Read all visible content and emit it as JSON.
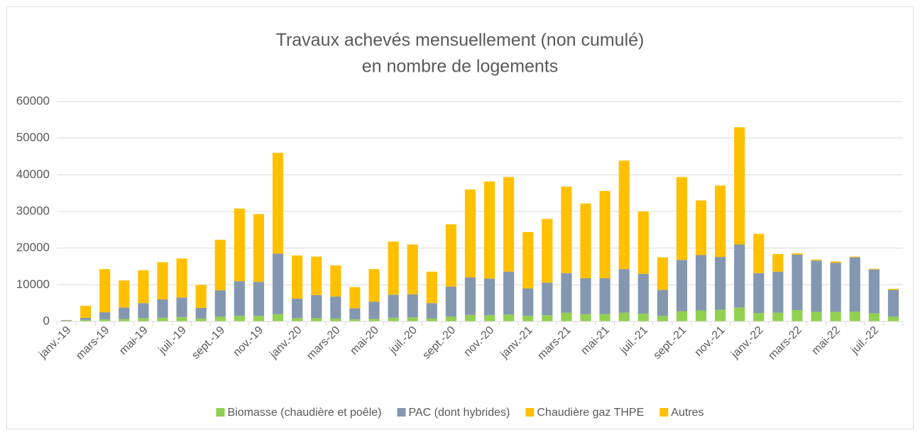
{
  "chart_data": {
    "type": "stacked_bar",
    "title": "Travaux achevés mensuellement (non cumulé)",
    "subtitle": "en nombre de logements",
    "categories": [
      "janv.-19",
      null,
      "mars-19",
      null,
      "mai-19",
      null,
      "juil.-19",
      null,
      "sept.-19",
      null,
      "nov.-19",
      null,
      "janv.-20",
      null,
      "mars-20",
      null,
      "mai-20",
      null,
      "juil.-20",
      null,
      "sept.-20",
      null,
      "nov.-20",
      null,
      "janv.-21",
      null,
      "mars-21",
      null,
      "mai-21",
      null,
      "juil.-21",
      null,
      "sept.-21",
      null,
      "nov.-21",
      null,
      "janv.-22",
      null,
      "mars-22",
      null,
      "mai-22",
      null,
      "juil.-22",
      null
    ],
    "series": [
      {
        "name": "Biomasse (chaudière et poêle)",
        "color": "#92D050",
        "values": [
          100,
          400,
          600,
          700,
          900,
          1000,
          1200,
          800,
          1300,
          1500,
          1500,
          2000,
          900,
          900,
          800,
          600,
          700,
          1000,
          1100,
          800,
          1300,
          1800,
          1700,
          1900,
          1500,
          1700,
          2400,
          2000,
          2000,
          2400,
          2100,
          1500,
          2800,
          3000,
          3200,
          3800,
          2300,
          2400,
          3100,
          2600,
          2600,
          2700,
          2200,
          1300
        ]
      },
      {
        "name": "PAC (dont hybrides)",
        "color": "#8497B0",
        "values": [
          200,
          600,
          1900,
          3100,
          4100,
          5000,
          5300,
          2900,
          7200,
          9500,
          9300,
          16500,
          5300,
          6300,
          6000,
          3000,
          4700,
          6300,
          6300,
          4200,
          8200,
          10200,
          10000,
          11700,
          7500,
          8900,
          10800,
          9800,
          9800,
          11900,
          10900,
          7100,
          14000,
          15100,
          14400,
          17200,
          10900,
          11200,
          15100,
          14000,
          13400,
          14800,
          12000,
          7300
        ]
      },
      {
        "name": "Chaudière gaz THPE",
        "color": "#FFC000",
        "values": [
          0,
          3200,
          11700,
          7300,
          8900,
          10100,
          10600,
          6200,
          13700,
          19700,
          18400,
          27400,
          11700,
          10400,
          8400,
          5700,
          8800,
          14400,
          13500,
          8500,
          16900,
          23900,
          26400,
          25700,
          15300,
          17300,
          23500,
          20300,
          23700,
          29500,
          16900,
          8800,
          22500,
          14800,
          19400,
          31900,
          10600,
          4700,
          300,
          200,
          300,
          100,
          100,
          200
        ]
      },
      {
        "name": "Autres",
        "color": "#FFC000",
        "values": [
          100,
          100,
          100,
          100,
          100,
          100,
          100,
          100,
          100,
          100,
          100,
          100,
          100,
          100,
          100,
          100,
          100,
          100,
          100,
          100,
          100,
          100,
          100,
          100,
          100,
          100,
          100,
          100,
          100,
          100,
          100,
          100,
          100,
          100,
          100,
          100,
          100,
          100,
          100,
          100,
          100,
          100,
          100,
          100
        ]
      }
    ],
    "ylim": [
      0,
      60000
    ],
    "yticks": [
      0,
      10000,
      20000,
      30000,
      40000,
      50000,
      60000
    ],
    "grid": true,
    "legend": "bottom"
  }
}
